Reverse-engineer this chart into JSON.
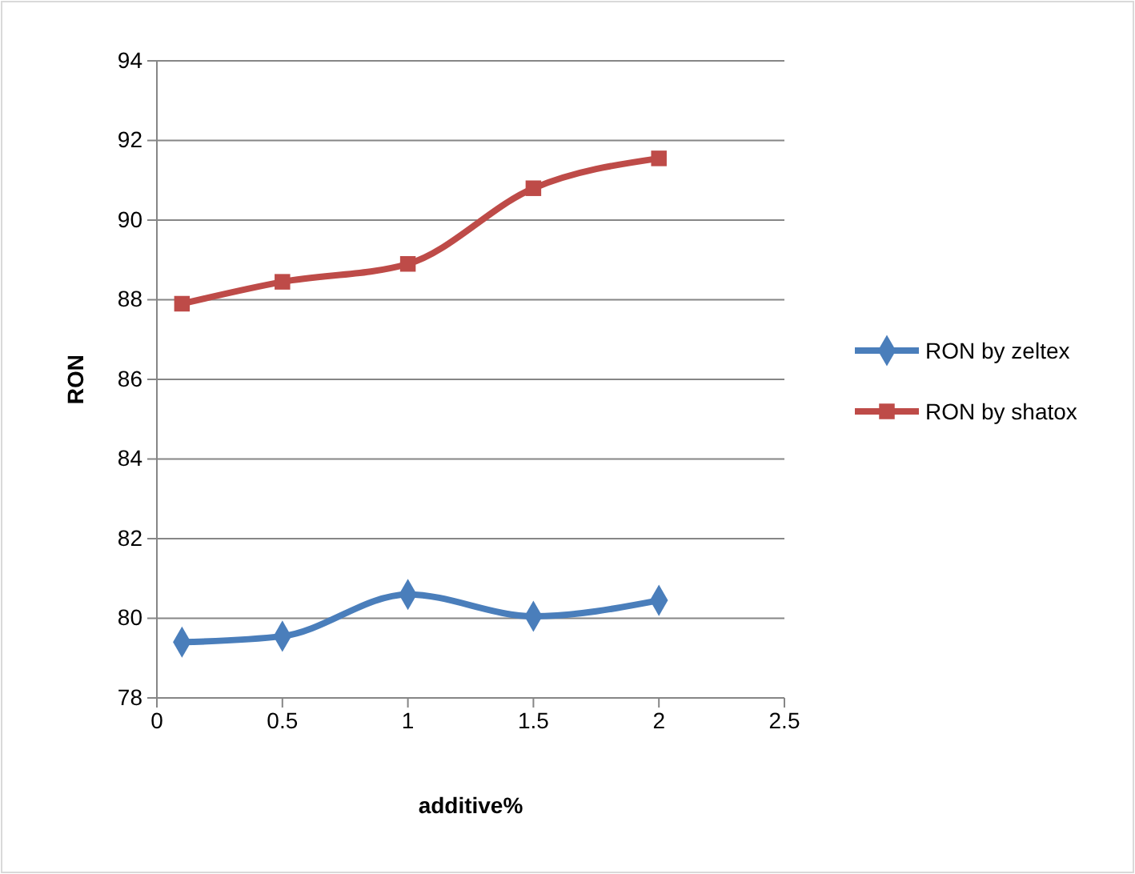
{
  "chart_data": {
    "type": "line",
    "xlabel": "additive%",
    "ylabel": "RON",
    "xlim": [
      0,
      2.5
    ],
    "xticks": [
      0,
      0.5,
      1,
      1.5,
      2,
      2.5
    ],
    "ylim": [
      78,
      94
    ],
    "yticks": [
      78,
      80,
      82,
      84,
      86,
      88,
      90,
      92,
      94
    ],
    "grid": "y",
    "legend": "right",
    "x": [
      0.1,
      0.5,
      1,
      1.5,
      2
    ],
    "series": [
      {
        "name": "RON by zeltex",
        "color": "#4a7ebb",
        "marker": "diamond",
        "values": [
          79.4,
          79.55,
          80.6,
          80.05,
          80.45
        ]
      },
      {
        "name": "RON by shatox",
        "color": "#be4b48",
        "marker": "square",
        "values": [
          87.9,
          88.45,
          88.9,
          90.8,
          91.55
        ]
      }
    ]
  }
}
